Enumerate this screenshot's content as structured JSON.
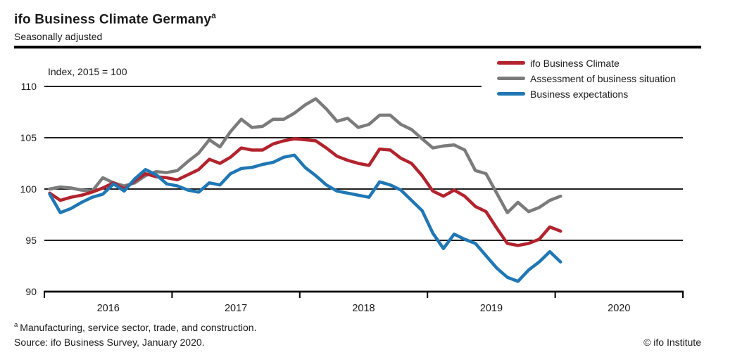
{
  "header": {
    "title": "ifo Business Climate Germany",
    "title_superscript": "a",
    "subtitle": "Seasonally adjusted"
  },
  "chart_data": {
    "type": "line",
    "title": "ifo Business Climate Germany",
    "index_label": "Index, 2015 = 100",
    "x_unit": "month",
    "first_point": "2016-01",
    "last_point": "2020-01",
    "x_tick_labels": [
      "2016",
      "2017",
      "2018",
      "2019",
      "2020"
    ],
    "y_ticks": [
      90,
      95,
      100,
      105,
      110
    ],
    "ylim": [
      90,
      110
    ],
    "grid": "horizontal-black",
    "legend_position": "top-right",
    "draw_order": [
      1,
      0,
      2
    ],
    "series": [
      {
        "name": "ifo Business Climate",
        "color": "#b2232d",
        "values": [
          99.6,
          98.9,
          99.2,
          99.4,
          99.7,
          100.1,
          100.6,
          100.0,
          100.8,
          101.5,
          101.2,
          101.1,
          100.9,
          101.4,
          101.9,
          102.9,
          102.5,
          103.1,
          104.0,
          103.8,
          103.8,
          104.4,
          104.7,
          104.9,
          104.8,
          104.7,
          104.0,
          103.2,
          102.8,
          102.5,
          102.3,
          103.9,
          103.8,
          103.0,
          102.5,
          101.3,
          99.8,
          99.3,
          99.9,
          99.3,
          98.3,
          97.8,
          96.2,
          94.7,
          94.5,
          94.7,
          95.1,
          96.3,
          95.9
        ]
      },
      {
        "name": "Assessment of business situation",
        "color": "#7b7b7b",
        "values": [
          100.0,
          100.2,
          100.1,
          99.9,
          99.8,
          101.1,
          100.6,
          100.3,
          100.6,
          101.3,
          101.7,
          101.6,
          101.8,
          102.7,
          103.5,
          104.8,
          104.1,
          105.6,
          106.8,
          106.0,
          106.1,
          106.8,
          106.8,
          107.4,
          108.2,
          108.8,
          107.8,
          106.6,
          106.9,
          106.0,
          106.3,
          107.2,
          107.2,
          106.3,
          105.8,
          104.9,
          104.0,
          104.2,
          104.3,
          103.8,
          101.8,
          101.5,
          99.6,
          97.7,
          98.7,
          97.8,
          98.2,
          98.9,
          99.3
        ]
      },
      {
        "name": "Business expectations",
        "color": "#1f77b4",
        "values": [
          99.5,
          97.7,
          98.1,
          98.7,
          99.2,
          99.5,
          100.5,
          99.8,
          101.0,
          101.9,
          101.4,
          100.5,
          100.3,
          99.9,
          99.7,
          100.6,
          100.4,
          101.5,
          102.0,
          102.1,
          102.4,
          102.6,
          103.1,
          103.3,
          102.1,
          101.3,
          100.4,
          99.8,
          99.6,
          99.4,
          99.2,
          100.7,
          100.4,
          99.9,
          98.9,
          97.9,
          95.7,
          94.2,
          95.6,
          95.1,
          94.7,
          93.5,
          92.3,
          91.4,
          91.0,
          92.1,
          92.9,
          93.9,
          92.9
        ]
      }
    ]
  },
  "footer": {
    "footnote_marker": "a",
    "footnote": "Manufacturing, service sector, trade, and construction.",
    "source": "Source: ifo Business Survey, January 2020.",
    "copyright": "© ifo Institute"
  }
}
